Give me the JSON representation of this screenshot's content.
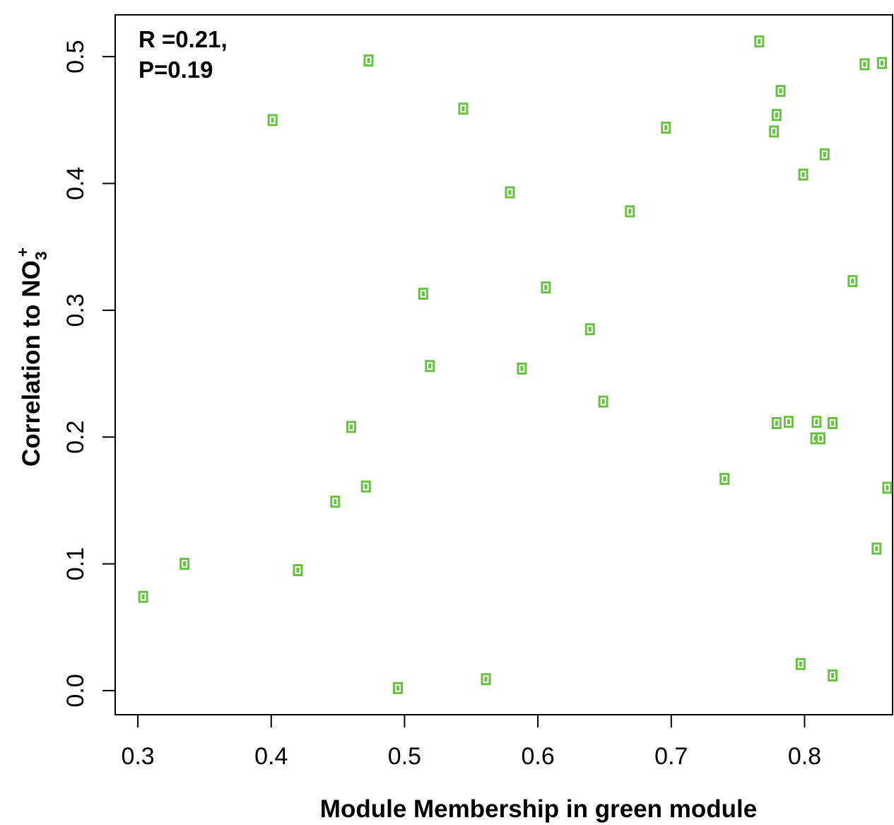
{
  "chart_data": {
    "type": "scatter",
    "xlabel": "Module Membership in green module",
    "ylabel": {
      "main": "Correlation to NO",
      "sub": "3",
      "sup": "+"
    },
    "annotation": [
      "R =0.21,",
      "P=0.19"
    ],
    "xlim": [
      0.283,
      0.866
    ],
    "ylim": [
      -0.019,
      0.533
    ],
    "xticks": [
      {
        "value": 0.3,
        "label": "0.3"
      },
      {
        "value": 0.4,
        "label": "0.4"
      },
      {
        "value": 0.5,
        "label": "0.5"
      },
      {
        "value": 0.6,
        "label": "0.6"
      },
      {
        "value": 0.7,
        "label": "0.7"
      },
      {
        "value": 0.8,
        "label": "0.8"
      }
    ],
    "yticks": [
      {
        "value": 0.0,
        "label": "0.0"
      },
      {
        "value": 0.1,
        "label": "0.1"
      },
      {
        "value": 0.2,
        "label": "0.2"
      },
      {
        "value": 0.3,
        "label": "0.3"
      },
      {
        "value": 0.4,
        "label": "0.4"
      },
      {
        "value": 0.5,
        "label": "0.5"
      }
    ],
    "marker_color": "#6abf45",
    "points": [
      {
        "x": 0.304,
        "y": 0.074
      },
      {
        "x": 0.335,
        "y": 0.1
      },
      {
        "x": 0.401,
        "y": 0.45
      },
      {
        "x": 0.42,
        "y": 0.095
      },
      {
        "x": 0.448,
        "y": 0.149
      },
      {
        "x": 0.46,
        "y": 0.208
      },
      {
        "x": 0.471,
        "y": 0.161
      },
      {
        "x": 0.473,
        "y": 0.497
      },
      {
        "x": 0.495,
        "y": 0.002
      },
      {
        "x": 0.514,
        "y": 0.313
      },
      {
        "x": 0.519,
        "y": 0.256
      },
      {
        "x": 0.544,
        "y": 0.459
      },
      {
        "x": 0.561,
        "y": 0.009
      },
      {
        "x": 0.579,
        "y": 0.393
      },
      {
        "x": 0.588,
        "y": 0.254
      },
      {
        "x": 0.606,
        "y": 0.318
      },
      {
        "x": 0.639,
        "y": 0.285
      },
      {
        "x": 0.649,
        "y": 0.228
      },
      {
        "x": 0.669,
        "y": 0.378
      },
      {
        "x": 0.696,
        "y": 0.444
      },
      {
        "x": 0.74,
        "y": 0.167
      },
      {
        "x": 0.766,
        "y": 0.512
      },
      {
        "x": 0.777,
        "y": 0.441
      },
      {
        "x": 0.779,
        "y": 0.454
      },
      {
        "x": 0.782,
        "y": 0.473
      },
      {
        "x": 0.779,
        "y": 0.211
      },
      {
        "x": 0.788,
        "y": 0.212
      },
      {
        "x": 0.797,
        "y": 0.021
      },
      {
        "x": 0.799,
        "y": 0.407
      },
      {
        "x": 0.808,
        "y": 0.199
      },
      {
        "x": 0.809,
        "y": 0.212
      },
      {
        "x": 0.812,
        "y": 0.199
      },
      {
        "x": 0.815,
        "y": 0.423
      },
      {
        "x": 0.821,
        "y": 0.012
      },
      {
        "x": 0.821,
        "y": 0.211
      },
      {
        "x": 0.836,
        "y": 0.323
      },
      {
        "x": 0.845,
        "y": 0.494
      },
      {
        "x": 0.854,
        "y": 0.112
      },
      {
        "x": 0.858,
        "y": 0.495
      },
      {
        "x": 0.862,
        "y": 0.16
      }
    ]
  }
}
